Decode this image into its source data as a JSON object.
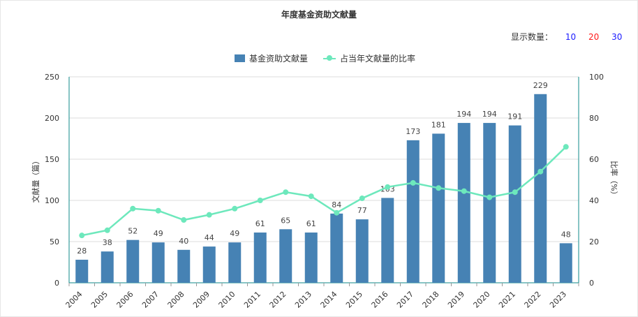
{
  "title": "年度基金资助文献量",
  "display_count": {
    "label": "显示数量：",
    "options": [
      "10",
      "20",
      "30"
    ]
  },
  "colors": {
    "bar": "#4682b4",
    "line": "#6de8bc",
    "axis": "#0f8a8a",
    "grid": "#dcdcdc"
  },
  "chart_data": {
    "type": "bar",
    "title": "年度基金资助文献量",
    "categories": [
      "2004",
      "2005",
      "2006",
      "2007",
      "2008",
      "2009",
      "2010",
      "2011",
      "2012",
      "2013",
      "2014",
      "2015",
      "2016",
      "2017",
      "2018",
      "2019",
      "2020",
      "2021",
      "2022",
      "2023"
    ],
    "series": [
      {
        "name": "基金资助文献量",
        "type": "bar",
        "axis": "left",
        "values": [
          28,
          38,
          52,
          49,
          40,
          44,
          49,
          61,
          65,
          61,
          84,
          77,
          103,
          173,
          181,
          194,
          194,
          191,
          229,
          48
        ]
      },
      {
        "name": "占当年文献量的比率",
        "type": "line",
        "axis": "right",
        "values": [
          23,
          25.5,
          36,
          35,
          30.5,
          33,
          36,
          40,
          44,
          42,
          34,
          41,
          46.5,
          48.5,
          46,
          44.5,
          41.5,
          44,
          54,
          66
        ]
      }
    ],
    "ylabel": "文献量（篇）",
    "ylabel_right": "比率（%）",
    "ylim": [
      0,
      250
    ],
    "ylim_right": [
      0,
      100
    ],
    "yticks": [
      "0",
      "50",
      "100",
      "150",
      "200",
      "250"
    ],
    "yticks_right": [
      "0",
      "20",
      "40",
      "60",
      "80",
      "100"
    ],
    "legend": "top-center",
    "grid": true
  }
}
